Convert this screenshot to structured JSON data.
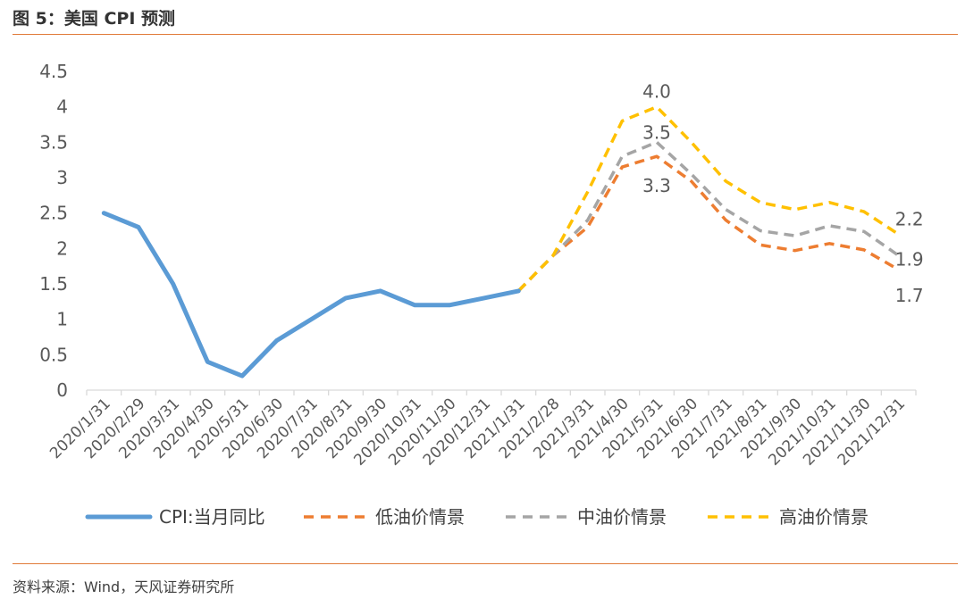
{
  "figure_title": "图 5：美国 CPI 预测",
  "source_note": "资料来源：Wind，天风证券研究所",
  "chart_data": {
    "type": "line",
    "categories": [
      "2020/1/31",
      "2020/2/29",
      "2020/3/31",
      "2020/4/30",
      "2020/5/31",
      "2020/6/30",
      "2020/7/31",
      "2020/8/31",
      "2020/9/30",
      "2020/10/31",
      "2020/11/30",
      "2020/12/31",
      "2021/1/31",
      "2021/2/28",
      "2021/3/31",
      "2021/4/30",
      "2021/5/31",
      "2021/6/30",
      "2021/7/31",
      "2021/8/31",
      "2021/9/30",
      "2021/10/31",
      "2021/11/30",
      "2021/12/31"
    ],
    "ylim": [
      0,
      4.5
    ],
    "yticks": [
      "0",
      "0.5",
      "1",
      "1.5",
      "2",
      "2.5",
      "3",
      "3.5",
      "4",
      "4.5"
    ],
    "grid": false,
    "legend_position": "bottom",
    "series": [
      {
        "name": "CPI:当月同比",
        "color": "#5B9BD5",
        "style": "solid",
        "values": [
          2.5,
          2.3,
          1.5,
          0.4,
          0.2,
          0.7,
          1.0,
          1.3,
          1.4,
          1.2,
          1.2,
          1.3,
          1.4,
          null,
          null,
          null,
          null,
          null,
          null,
          null,
          null,
          null,
          null,
          null
        ]
      },
      {
        "name": "低油价情景",
        "color": "#ED7D31",
        "style": "dashed",
        "values": [
          null,
          null,
          null,
          null,
          null,
          null,
          null,
          null,
          null,
          null,
          null,
          null,
          1.4,
          1.9,
          2.3,
          3.15,
          3.3,
          2.95,
          2.4,
          2.05,
          1.97,
          2.07,
          1.98,
          1.7
        ]
      },
      {
        "name": "中油价情景",
        "color": "#A5A5A5",
        "style": "dashed",
        "values": [
          null,
          null,
          null,
          null,
          null,
          null,
          null,
          null,
          null,
          null,
          null,
          null,
          1.4,
          1.9,
          2.4,
          3.3,
          3.5,
          3.05,
          2.55,
          2.25,
          2.18,
          2.32,
          2.24,
          1.9
        ]
      },
      {
        "name": "高油价情景",
        "color": "#FFC000",
        "style": "dashed",
        "values": [
          null,
          null,
          null,
          null,
          null,
          null,
          null,
          null,
          null,
          null,
          null,
          null,
          1.4,
          1.9,
          2.8,
          3.8,
          4.0,
          3.5,
          2.95,
          2.65,
          2.55,
          2.65,
          2.52,
          2.2
        ]
      }
    ],
    "data_labels": [
      {
        "series": 3,
        "index": 16,
        "text": "4.0"
      },
      {
        "series": 2,
        "index": 16,
        "text": "3.5"
      },
      {
        "series": 1,
        "index": 16,
        "text": "3.3"
      },
      {
        "series": 3,
        "index": 23,
        "text": "2.2"
      },
      {
        "series": 2,
        "index": 23,
        "text": "1.9"
      },
      {
        "series": 1,
        "index": 23,
        "text": "1.7"
      }
    ]
  }
}
